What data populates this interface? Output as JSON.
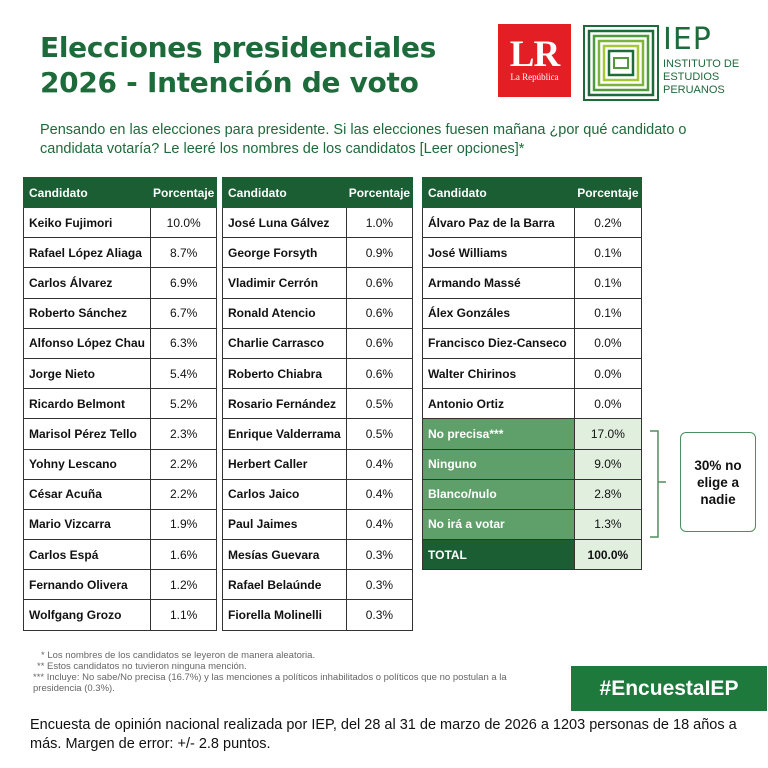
{
  "header": {
    "title_line1": "Elecciones presidenciales",
    "title_line2": "2026 - Intención de voto",
    "lr_logo_big": "LR",
    "lr_logo_small": "La República",
    "iep_name": "IEP",
    "iep_sub1": "INSTITUTO DE",
    "iep_sub2": "ESTUDIOS",
    "iep_sub3": "PERUANOS"
  },
  "question": "Pensando en las elecciones para presidente. Si las elecciones fuesen mañana ¿por qué candidato o candidata votaría? Le leeré los nombres de los candidatos [Leer opciones]*",
  "colors": {
    "brand_green": "#1d6a3a",
    "header_green": "#1b5e34",
    "highlight_green": "#5f9f6a",
    "light_green": "#e1efdf",
    "lr_red": "#e31e24"
  },
  "chart_data": {
    "type": "table",
    "columns": [
      "Candidato",
      "Porcentaje"
    ],
    "tables": [
      {
        "rows": [
          {
            "name": "Keiko Fujimori",
            "value": "10.0%"
          },
          {
            "name": "Rafael López Aliaga",
            "value": "8.7%"
          },
          {
            "name": "Carlos Álvarez",
            "value": "6.9%"
          },
          {
            "name": "Roberto Sánchez",
            "value": "6.7%"
          },
          {
            "name": "Alfonso López Chau",
            "value": "6.3%"
          },
          {
            "name": "Jorge Nieto",
            "value": "5.4%"
          },
          {
            "name": "Ricardo Belmont",
            "value": "5.2%"
          },
          {
            "name": "Marisol Pérez Tello",
            "value": "2.3%"
          },
          {
            "name": "Yohny Lescano",
            "value": "2.2%"
          },
          {
            "name": "César Acuña",
            "value": "2.2%"
          },
          {
            "name": "Mario Vizcarra",
            "value": "1.9%"
          },
          {
            "name": "Carlos Espá",
            "value": "1.6%"
          },
          {
            "name": "Fernando Olivera",
            "value": "1.2%"
          },
          {
            "name": "Wolfgang Grozo",
            "value": "1.1%"
          }
        ]
      },
      {
        "rows": [
          {
            "name": "José Luna Gálvez",
            "value": "1.0%"
          },
          {
            "name": "George Forsyth",
            "value": "0.9%"
          },
          {
            "name": "Vladimir Cerrón",
            "value": "0.6%"
          },
          {
            "name": "Ronald Atencio",
            "value": "0.6%"
          },
          {
            "name": "Charlie Carrasco",
            "value": "0.6%"
          },
          {
            "name": "Roberto Chiabra",
            "value": "0.6%"
          },
          {
            "name": "Rosario Fernández",
            "value": "0.5%"
          },
          {
            "name": "Enrique Valderrama",
            "value": "0.5%"
          },
          {
            "name": "Herbert Caller",
            "value": "0.4%"
          },
          {
            "name": "Carlos Jaico",
            "value": "0.4%"
          },
          {
            "name": "Paul Jaimes",
            "value": "0.4%"
          },
          {
            "name": "Mesías Guevara",
            "value": "0.3%"
          },
          {
            "name": "Rafael Belaúnde",
            "value": "0.3%"
          },
          {
            "name": "Fiorella Molinelli",
            "value": "0.3%"
          }
        ]
      },
      {
        "rows": [
          {
            "name": "Álvaro Paz de la Barra",
            "value": "0.2%"
          },
          {
            "name": "José Williams",
            "value": "0.1%"
          },
          {
            "name": "Armando Massé",
            "value": "0.1%"
          },
          {
            "name": "Álex Gonzáles",
            "value": "0.1%"
          },
          {
            "name": "Francisco Diez-Canseco",
            "value": "0.0%"
          },
          {
            "name": "Walter Chirinos",
            "value": "0.0%"
          },
          {
            "name": "Antonio Ortiz",
            "value": "0.0%"
          },
          {
            "name": "No precisa***",
            "value": "17.0%",
            "style": "highlight"
          },
          {
            "name": "Ninguno",
            "value": "9.0%",
            "style": "highlight"
          },
          {
            "name": "Blanco/nulo",
            "value": "2.8%",
            "style": "highlight"
          },
          {
            "name": "No irá a votar",
            "value": "1.3%",
            "style": "highlight"
          },
          {
            "name": "TOTAL",
            "value": "100.0%",
            "style": "total"
          }
        ]
      }
    ],
    "annotation": "30% no elige a nadie"
  },
  "notes": {
    "n1": "* Los nombres de los candidatos se leyeron de manera aleatoria.",
    "n2": "** Estos candidatos no tuvieron ninguna mención.",
    "n3": "*** Incluye: No sabe/No precisa (16.7%) y las menciones a políticos inhabilitados o políticos que no postulan a la presidencia (0.3%)."
  },
  "hashtag": "#EncuestaIEP",
  "footer": "Encuesta de opinión nacional realizada por IEP, del 28 al 31 de marzo de 2026 a 1203 personas de 18 años a más. Margen de error: +/- 2.8 puntos."
}
